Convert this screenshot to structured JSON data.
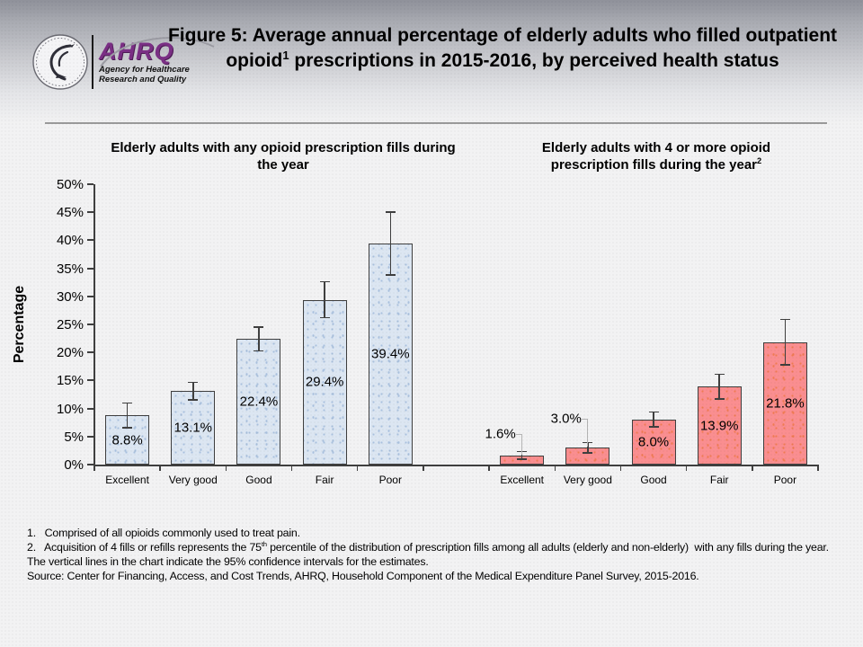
{
  "header": {
    "ahrq_word": "AHRQ",
    "ahrq_tagline_line1": "Agency for Healthcare",
    "ahrq_tagline_line2": "Research and Quality",
    "title_pre": "Figure 5: Average annual percentage of elderly adults who filled outpatient opioid",
    "title_sup": "1",
    "title_post": " prescriptions in 2015-2016, by perceived health status"
  },
  "colors": {
    "accent_purple": "#7b2f85",
    "axis": "#3f3f3f",
    "blue_bar": "#dce6f2",
    "blue_bar_dot": "#a9c0dd",
    "pink_bar": "#fa8e90",
    "pink_bar_dot": "#ef7b52",
    "leader_line": "#b5b5b5",
    "header_gray": "#8f919a"
  },
  "chart_data": {
    "type": "bar",
    "ylabel": "Percentage",
    "ylim": [
      0,
      50
    ],
    "ytick_step": 5,
    "ytick_suffix": "%",
    "grid": false,
    "legend": "none",
    "error_bars": "95% confidence intervals",
    "categories": [
      "Excellent",
      "Very good",
      "Good",
      "Fair",
      "Poor"
    ],
    "groups": [
      {
        "subtitle_pre": "Elderly adults with any opioid prescription fills during the year",
        "subtitle_sup": "",
        "bar_fill": "#dce6f2",
        "bar_dot": "#a9c0dd",
        "bars": [
          {
            "category": "Excellent",
            "value": 8.8,
            "label": "8.8%",
            "ci_low": 6.6,
            "ci_high": 11.0,
            "label_pos": "inside"
          },
          {
            "category": "Very good",
            "value": 13.1,
            "label": "13.1%",
            "ci_low": 11.5,
            "ci_high": 14.7,
            "label_pos": "inside"
          },
          {
            "category": "Good",
            "value": 22.4,
            "label": "22.4%",
            "ci_low": 20.3,
            "ci_high": 24.5,
            "label_pos": "inside"
          },
          {
            "category": "Fair",
            "value": 29.4,
            "label": "29.4%",
            "ci_low": 26.2,
            "ci_high": 32.6,
            "label_pos": "inside"
          },
          {
            "category": "Poor",
            "value": 39.4,
            "label": "39.4%",
            "ci_low": 33.8,
            "ci_high": 45.0,
            "label_pos": "inside"
          }
        ]
      },
      {
        "subtitle_pre": "Elderly adults with 4 or more opioid prescription fills during the year",
        "subtitle_sup": "2",
        "bar_fill": "#fa8e90",
        "bar_dot": "#ef7b52",
        "bars": [
          {
            "category": "Excellent",
            "value": 1.6,
            "label": "1.6%",
            "ci_low": 1.0,
            "ci_high": 2.3,
            "label_pos": "callout",
            "label_dy": -24
          },
          {
            "category": "Very good",
            "value": 3.0,
            "label": "3.0%",
            "ci_low": 2.1,
            "ci_high": 3.9,
            "label_pos": "callout",
            "label_dy": -32
          },
          {
            "category": "Good",
            "value": 8.0,
            "label": "8.0%",
            "ci_low": 6.7,
            "ci_high": 9.4,
            "label_pos": "inside"
          },
          {
            "category": "Fair",
            "value": 13.9,
            "label": "13.9%",
            "ci_low": 11.7,
            "ci_high": 16.1,
            "label_pos": "inside"
          },
          {
            "category": "Poor",
            "value": 21.8,
            "label": "21.8%",
            "ci_low": 17.8,
            "ci_high": 25.9,
            "label_pos": "inside"
          }
        ]
      }
    ]
  },
  "footnotes": [
    {
      "pre": "1.   Comprised of all opioids commonly used to treat pain."
    },
    {
      "pre": "2.   Acquisition of 4 fills or refills represents the 75",
      "sup": "th",
      "post": " percentile of the distribution of prescription fills among all adults (elderly and non-elderly)  with any fills during the year."
    },
    {
      "pre": "The vertical lines in the chart indicate the 95% confidence intervals for the estimates."
    },
    {
      "pre": "Source: Center for Financing, Access, and Cost Trends, AHRQ, Household Component of the Medical Expenditure Panel Survey, 2015-2016."
    }
  ]
}
